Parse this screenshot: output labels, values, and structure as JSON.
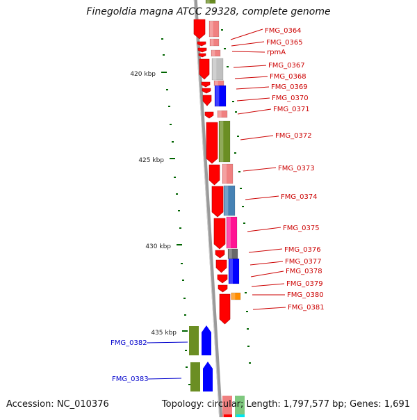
{
  "title": "Finegoldia magna ATCC 29328, complete genome",
  "accession_text": "Accession: NC_010376",
  "summary_text": "Topology: circular; Length: 1,797,577 bp; Genes: 1,691",
  "ticks": [
    "420 kbp",
    "425 kbp",
    "430 kbp",
    "435 kbp"
  ],
  "colors": {
    "red": "#ff0000",
    "pink": "#f08080",
    "grey": "#c0c0c0",
    "blue": "#0000ff",
    "olive": "#6b8e23",
    "steelblue": "#4682b4",
    "magenta": "#ff1493",
    "dimgrey": "#696969",
    "orange": "#ff8c00",
    "backbone": "#808080",
    "label_right": "#cc0000",
    "label_left": "#0000cc"
  },
  "right_labels": [
    "FMG_0364",
    "FMG_0365",
    "rpmA",
    "FMG_0367",
    "FMG_0368",
    "FMG_0369",
    "FMG_0370",
    "FMG_0371",
    "FMG_0372",
    "FMG_0373",
    "FMG_0374",
    "FMG_0375",
    "FMG_0376",
    "FMG_0377",
    "FMG_0378",
    "FMG_0379",
    "FMG_0380",
    "FMG_0381"
  ],
  "left_labels": [
    "FMG_0382",
    "FMG_0383"
  ]
}
